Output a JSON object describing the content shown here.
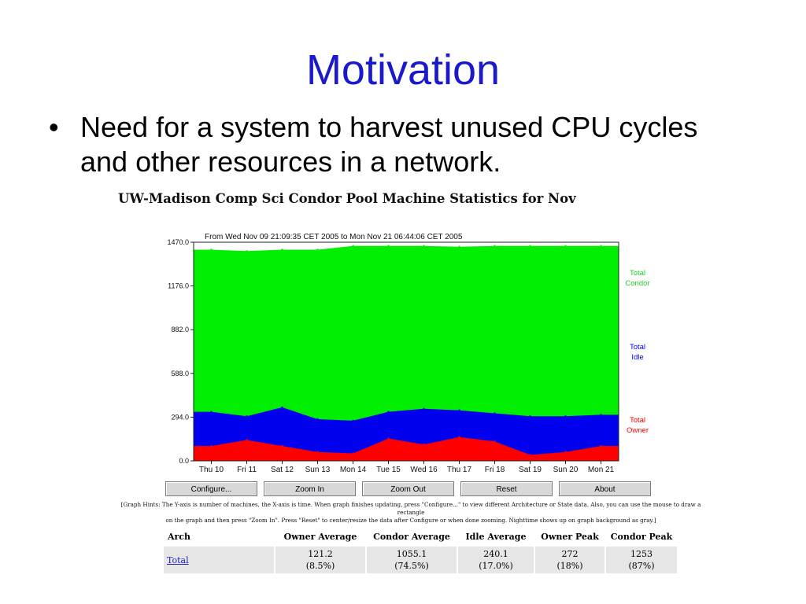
{
  "slide": {
    "title": "Motivation",
    "bullet": "•",
    "bullet_text": "Need for a system to harvest unused CPU cycles and other resources in a network."
  },
  "stats_title": "UW-Madison Comp Sci Condor Pool Machine Statistics for Nov",
  "chart_data": {
    "type": "area",
    "title": "From Wed Nov 09 21:09:35 CET 2005 to Mon Nov 21 06:44:06 CET 2005",
    "y_ticks": [
      "0.0",
      "294.0",
      "588.0",
      "882.0",
      "1176.0",
      "1470.0"
    ],
    "ylim": [
      0,
      1470
    ],
    "x_ticks": [
      "Thu 10",
      "Fri 11",
      "Sat 12",
      "Sun 13",
      "Mon 14",
      "Tue 15",
      "Wed 16",
      "Thu 17",
      "Fri 18",
      "Sat 19",
      "Sun 20",
      "Mon 21"
    ],
    "x": [
      "Thu 10",
      "Fri 11",
      "Sat 12",
      "Sun 13",
      "Mon 14",
      "Tue 15",
      "Wed 16",
      "Thu 17",
      "Fri 18",
      "Sat 19",
      "Sun 20",
      "Mon 21"
    ],
    "series": [
      {
        "name": "Total Condor",
        "label_lines": [
          "Total",
          "Condor"
        ],
        "color": "#00ee00",
        "values": [
          1420,
          1410,
          1420,
          1420,
          1445,
          1445,
          1445,
          1440,
          1445,
          1445,
          1445,
          1445
        ]
      },
      {
        "name": "Total Idle",
        "label_lines": [
          "Total",
          "Idle"
        ],
        "color": "#0000ee",
        "values": [
          330,
          300,
          360,
          280,
          270,
          330,
          350,
          340,
          320,
          300,
          300,
          310
        ]
      },
      {
        "name": "Total Owner",
        "label_lines": [
          "Total",
          "Owner"
        ],
        "color": "#ff0000",
        "values": [
          100,
          140,
          100,
          60,
          50,
          150,
          110,
          160,
          130,
          40,
          60,
          100
        ]
      }
    ]
  },
  "buttons": [
    "Configure...",
    "Zoom In",
    "Zoom Out",
    "Reset",
    "About"
  ],
  "hints": {
    "line1": "[Graph Hints: The Y-axis is number of machines, the X-axis is time. When graph finishes updating, press \"Configure...\" to view different Architecture or State data. Also, you can use the mouse to draw a rectangle",
    "line2": "on the graph and then press \"Zoom In\". Press \"Reset\" to center/resize the data after Configure or when done zooming. Nighttime shows up on graph background as gray.]"
  },
  "table": {
    "headers": [
      "Arch",
      "Owner Average",
      "Condor Average",
      "Idle Average",
      "Owner Peak",
      "Condor Peak"
    ],
    "row": {
      "arch": "Total",
      "cells": [
        {
          "value": "121.2",
          "pct": "(8.5%)"
        },
        {
          "value": "1055.1",
          "pct": "(74.5%)"
        },
        {
          "value": "240.1",
          "pct": "(17.0%)"
        },
        {
          "value": "272",
          "pct": "(18%)"
        },
        {
          "value": "1253",
          "pct": "(87%)"
        }
      ]
    }
  }
}
